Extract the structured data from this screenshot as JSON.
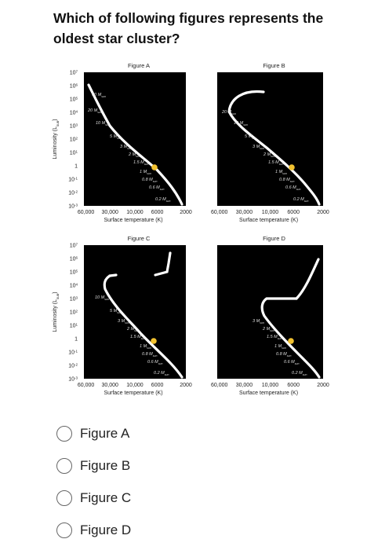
{
  "question": "Which of following figures represents the oldest star cluster?",
  "figures": [
    {
      "title": "Figure A",
      "y_axis": {
        "label": {
          "text": "Luminosity (L",
          "sub": "sun",
          "close": ")"
        },
        "ticks": [
          {
            "base": "10",
            "exp": "7"
          },
          {
            "base": "10",
            "exp": "6"
          },
          {
            "base": "10",
            "exp": "5"
          },
          {
            "base": "10",
            "exp": "4"
          },
          {
            "base": "10",
            "exp": "3"
          },
          {
            "base": "10",
            "exp": "2"
          },
          {
            "base": "10",
            "exp": "1"
          },
          "1",
          {
            "base": "10",
            "exp": "-1"
          },
          {
            "base": "10",
            "exp": "-2"
          },
          {
            "base": "10",
            "exp": "-3"
          }
        ]
      },
      "x_axis": {
        "label": "Surface temperature (K)",
        "ticks": [
          "60,000",
          "30,000",
          "10,000",
          "6000",
          "2000"
        ]
      },
      "mass_labels": [
        {
          "text": "60 M",
          "sub": "sun"
        },
        {
          "text": "20 M",
          "sub": "sun"
        },
        {
          "text": "10 M",
          "sub": "sun"
        },
        {
          "text": "5 M",
          "sub": "sun"
        },
        {
          "text": "3 M",
          "sub": "sun"
        },
        {
          "text": "2 M",
          "sub": "sun"
        },
        {
          "text": "1.5 M",
          "sub": "sun"
        },
        {
          "text": "1 M",
          "sub": "sun"
        },
        {
          "text": "0.8 M",
          "sub": "sun"
        },
        {
          "text": "0.6 M",
          "sub": "sun"
        },
        {
          "text": "0.2 M",
          "sub": "sun"
        }
      ]
    },
    {
      "title": "Figure B",
      "x_axis": {
        "label": "Surface temperature (K)",
        "ticks": [
          "60,000",
          "30,000",
          "10,000",
          "6000",
          "2000"
        ]
      },
      "mass_labels": [
        {
          "text": "20 M",
          "sub": "sun"
        },
        {
          "text": "10 M",
          "sub": "sun"
        },
        {
          "text": "5 M",
          "sub": "sun"
        },
        {
          "text": "3 M",
          "sub": "sun"
        },
        {
          "text": "2 M",
          "sub": "sun"
        },
        {
          "text": "1.5 M",
          "sub": "sun"
        },
        {
          "text": "1 M",
          "sub": "sun"
        },
        {
          "text": "0.8 M",
          "sub": "sun"
        },
        {
          "text": "0.6 M",
          "sub": "sun"
        },
        {
          "text": "0.2 M",
          "sub": "sun"
        }
      ]
    },
    {
      "title": "Figure C",
      "y_axis": {
        "label": {
          "text": "Luminosity (L",
          "sub": "sun",
          "close": ")"
        },
        "ticks": [
          {
            "base": "10",
            "exp": "7"
          },
          {
            "base": "10",
            "exp": "6"
          },
          {
            "base": "10",
            "exp": "5"
          },
          {
            "base": "10",
            "exp": "4"
          },
          {
            "base": "10",
            "exp": "3"
          },
          {
            "base": "10",
            "exp": "2"
          },
          {
            "base": "10",
            "exp": "1"
          },
          "1",
          {
            "base": "10",
            "exp": "-1"
          },
          {
            "base": "10",
            "exp": "-2"
          },
          {
            "base": "10",
            "exp": "-3"
          }
        ]
      },
      "x_axis": {
        "label": "Surface temperature (K)",
        "ticks": [
          "60,000",
          "30,000",
          "10,000",
          "6000",
          "2000"
        ]
      },
      "mass_labels": [
        {
          "text": "10 M",
          "sub": "sun"
        },
        {
          "text": "5 M",
          "sub": "sun"
        },
        {
          "text": "3 M",
          "sub": "sun"
        },
        {
          "text": "2 M",
          "sub": "sun"
        },
        {
          "text": "1.5 M",
          "sub": "sun"
        },
        {
          "text": "1 M",
          "sub": "sun"
        },
        {
          "text": "0.8 M",
          "sub": "sun"
        },
        {
          "text": "0.6 M",
          "sub": "sun"
        },
        {
          "text": "0.2 M",
          "sub": "sun"
        }
      ]
    },
    {
      "title": "Figure D",
      "x_axis": {
        "label": "Surface temperature (K)",
        "ticks": [
          "60,000",
          "30,000",
          "10,000",
          "6000",
          "2000"
        ]
      },
      "mass_labels": [
        {
          "text": "3 M",
          "sub": "sun"
        },
        {
          "text": "2 M",
          "sub": "sun"
        },
        {
          "text": "1.5 M",
          "sub": "sun"
        },
        {
          "text": "1 M",
          "sub": "sun"
        },
        {
          "text": "0.8 M",
          "sub": "sun"
        },
        {
          "text": "0.6 M",
          "sub": "sun"
        },
        {
          "text": "0.2 M",
          "sub": "sun"
        }
      ]
    }
  ],
  "options": [
    "Figure A",
    "Figure B",
    "Figure C",
    "Figure D"
  ]
}
